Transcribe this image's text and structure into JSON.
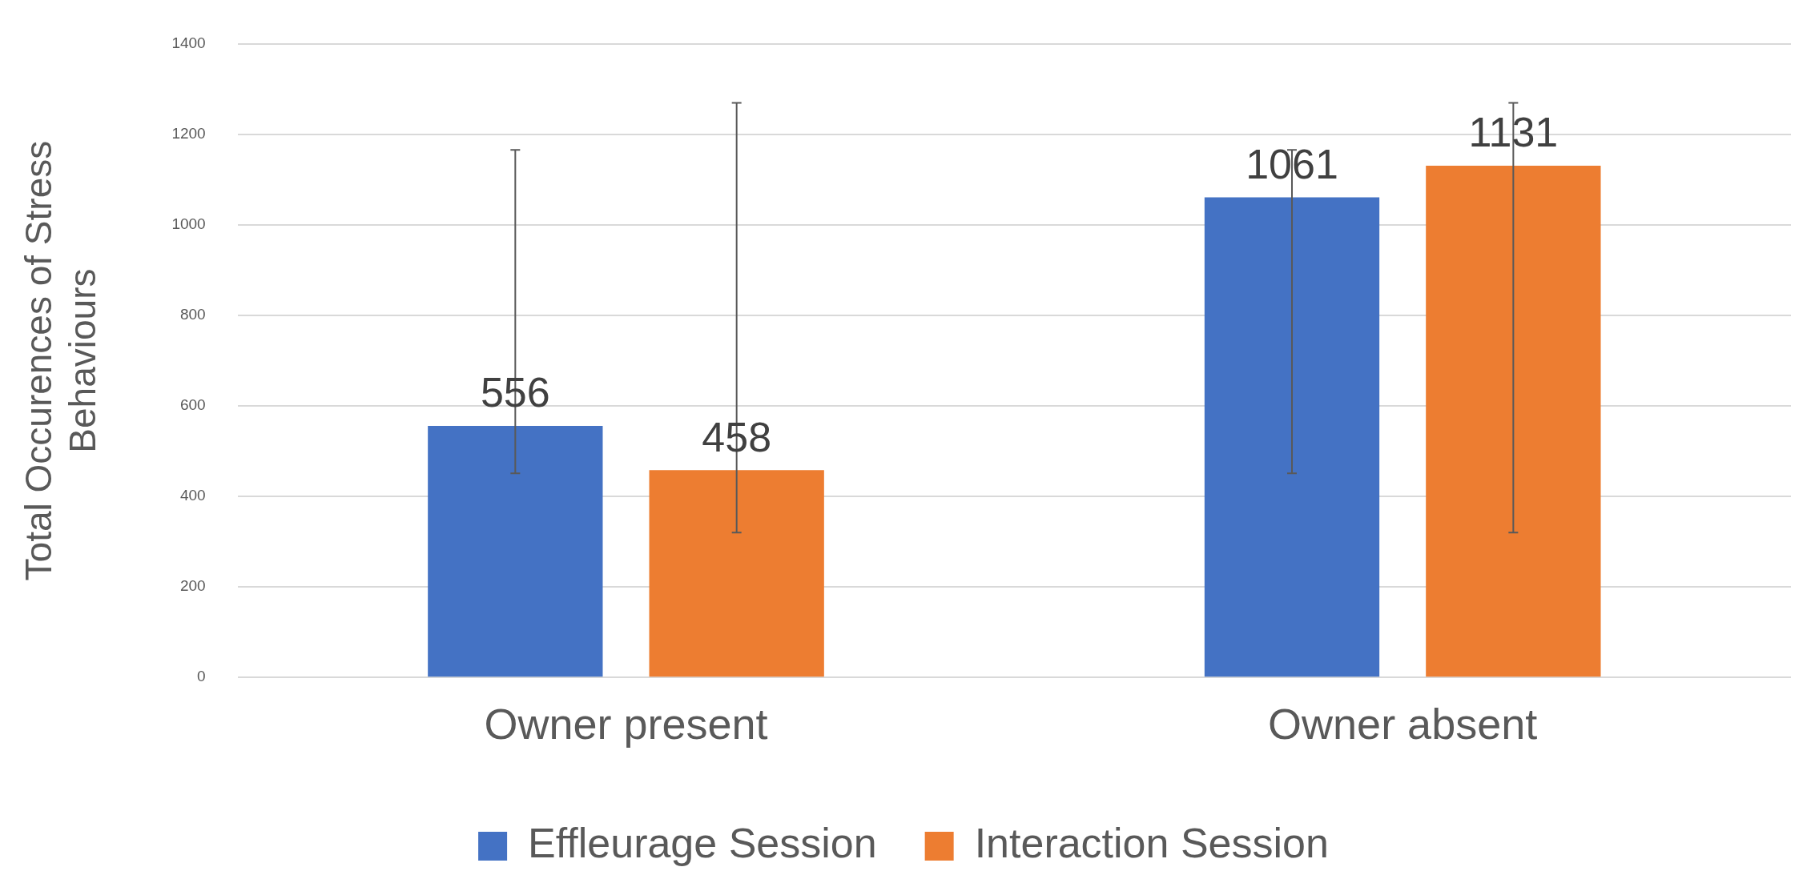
{
  "chart_data": {
    "type": "bar",
    "ylabel": "Total Occurences of Stress Behaviours",
    "categories": [
      "Owner present",
      "Owner absent"
    ],
    "series": [
      {
        "name": "Effleurage Session",
        "color": "#4472c4",
        "values": [
          556,
          1061
        ],
        "errors": [
          [
            451,
            1166
          ],
          [
            451,
            1166
          ]
        ]
      },
      {
        "name": "Interaction Session",
        "color": "#ed7d31",
        "values": [
          458,
          1131
        ],
        "errors": [
          [
            320,
            1270
          ],
          [
            320,
            1270
          ]
        ]
      }
    ],
    "ylim": [
      0,
      1400
    ],
    "yticks": [
      0,
      200,
      400,
      600,
      800,
      1000,
      1200,
      1400
    ],
    "grid": "y",
    "legend": "bottom",
    "data_labels": true
  }
}
